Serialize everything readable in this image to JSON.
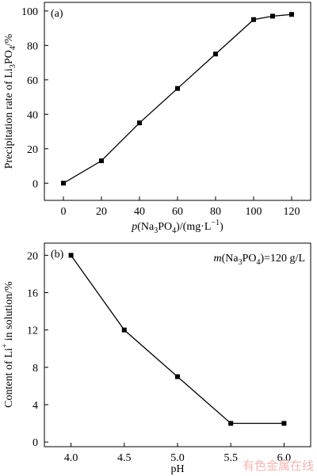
{
  "chart_data": [
    {
      "type": "line",
      "panel_label": "(a)",
      "x": [
        0,
        20,
        40,
        60,
        80,
        100,
        110,
        120
      ],
      "series": [
        {
          "values": [
            0,
            13,
            35,
            55,
            75,
            95,
            97,
            98
          ]
        }
      ],
      "xlim": [
        -10,
        130
      ],
      "ylim": [
        -10,
        105
      ],
      "xticks": [
        0,
        20,
        40,
        60,
        80,
        100,
        120
      ],
      "yticks": [
        0,
        20,
        40,
        60,
        80,
        100
      ],
      "xlabel": {
        "pre": "p",
        "mid": "(Na",
        "s1": "3",
        "mid2": "PO",
        "s2": "4",
        "post": ")/(mg·L",
        "sup": "−1",
        "end": ")"
      },
      "ylabel": {
        "pre": "Precipitation rate of Li",
        "s1": "3",
        "mid": "PO",
        "s2": "4",
        "post": "/%"
      },
      "marker": "square",
      "color": "#000000"
    },
    {
      "type": "line",
      "panel_label": "(b)",
      "annotation": {
        "pre": "m",
        "mid": "(Na",
        "s1": "3",
        "mid2": "PO",
        "s2": "4",
        "post": ")=120 g/L"
      },
      "x": [
        4.0,
        4.5,
        5.0,
        5.5,
        6.0
      ],
      "series": [
        {
          "values": [
            20,
            12,
            7,
            2,
            2
          ]
        }
      ],
      "xlim": [
        3.75,
        6.25
      ],
      "ylim": [
        -0.5,
        21.3
      ],
      "xticks": [
        "4.0",
        "4.5",
        "5.0",
        "5.5",
        "6.0"
      ],
      "yticks": [
        0,
        4,
        8,
        12,
        16,
        20
      ],
      "xlabel": {
        "text": "pH"
      },
      "ylabel": {
        "pre": "Content of Li",
        "sup": "+",
        "post": " in solution/%"
      },
      "marker": "square",
      "color": "#000000"
    }
  ],
  "watermark": "有色金属在线"
}
